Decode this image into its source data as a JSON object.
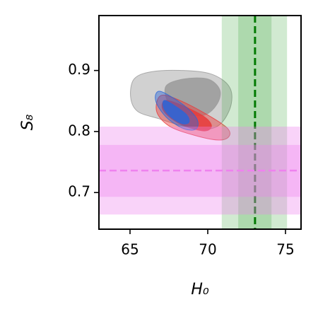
{
  "chart_data": {
    "type": "contour",
    "xlabel": "H₀",
    "ylabel": "S₈",
    "xlim": [
      63,
      76
    ],
    "ylim": [
      0.64,
      0.99
    ],
    "xticks": [
      65,
      70,
      75
    ],
    "yticks": [
      0.7,
      0.8,
      0.9
    ],
    "bands": [
      {
        "axis": "x",
        "center": 73.04,
        "inner": [
          71.96,
          74.1
        ],
        "outer": [
          70.9,
          75.1
        ],
        "color": "#2ca02c",
        "line_color": "#007a00"
      },
      {
        "axis": "y",
        "center": 0.736,
        "inner": [
          0.693,
          0.778
        ],
        "outer": [
          0.664,
          0.808
        ],
        "color": "#ee82ee",
        "line_color": "#ee82ee"
      }
    ],
    "series": [
      {
        "color": "#9a9a9a",
        "levels": [
          {
            "x": [
              65.26,
              66.39,
              68.43,
              70.24,
              71.37,
              71.51,
              70.92,
              70.01,
              68.43,
              66.85,
              65.49,
              65.04
            ],
            "y": [
              0.886,
              0.898,
              0.9,
              0.894,
              0.874,
              0.845,
              0.815,
              0.804,
              0.809,
              0.821,
              0.833,
              0.856
            ]
          },
          {
            "x": [
              67.3,
              68.43,
              70.01,
              70.78,
              70.6,
              69.79,
              68.52,
              67.52
            ],
            "y": [
              0.874,
              0.886,
              0.886,
              0.868,
              0.845,
              0.827,
              0.829,
              0.845
            ]
          }
        ]
      },
      {
        "color": "#e8393a",
        "levels": [
          {
            "x": [
              66.98,
              68.2,
              70.01,
              71.24,
              71.37,
              70.69,
              69.11,
              67.52,
              66.71
            ],
            "y": [
              0.859,
              0.851,
              0.827,
              0.806,
              0.792,
              0.786,
              0.794,
              0.809,
              0.833
            ]
          },
          {
            "x": [
              67.3,
              68.43,
              69.79,
              70.24,
              69.79,
              68.52,
              67.52,
              67.07
            ],
            "y": [
              0.851,
              0.842,
              0.824,
              0.809,
              0.801,
              0.809,
              0.824,
              0.839
            ]
          }
        ]
      },
      {
        "color": "#2a66d8",
        "levels": [
          {
            "x": [
              66.85,
              67.52,
              68.66,
              69.33,
              69.24,
              68.52,
              67.52,
              66.85,
              66.62
            ],
            "y": [
              0.866,
              0.859,
              0.839,
              0.819,
              0.804,
              0.804,
              0.819,
              0.839,
              0.856
            ]
          },
          {
            "x": [
              67.21,
              67.89,
              68.66,
              68.79,
              68.34,
              67.62,
              67.16
            ],
            "y": [
              0.851,
              0.842,
              0.827,
              0.815,
              0.813,
              0.824,
              0.839
            ]
          }
        ]
      }
    ]
  }
}
